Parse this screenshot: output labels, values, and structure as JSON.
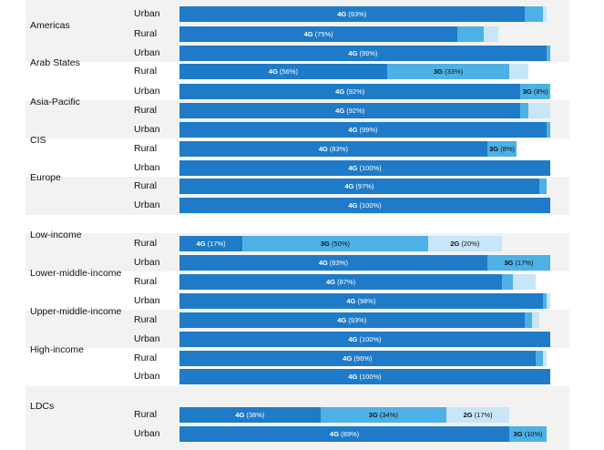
{
  "chart_data": {
    "type": "bar",
    "stacked": true,
    "orientation": "horizontal",
    "xlim": [
      0,
      100
    ],
    "series": [
      {
        "name": "4G",
        "color": "#1f7bc8"
      },
      {
        "name": "3G",
        "color": "#4eb1e6"
      },
      {
        "name": "2G",
        "color": "#c7e6f7"
      }
    ],
    "groups": [
      {
        "label": "",
        "rows": [
          {
            "area": "Urban",
            "values": [
              93,
              5,
              1
            ]
          }
        ]
      },
      {
        "label": "Americas",
        "rows": [
          {
            "area": "Rural",
            "values": [
              75,
              7,
              4
            ]
          },
          {
            "area": "Urban",
            "values": [
              99,
              1,
              0
            ]
          }
        ]
      },
      {
        "label": "Arab States",
        "rows": [
          {
            "area": "Rural",
            "values": [
              56,
              33,
              5
            ]
          },
          {
            "area": "Urban",
            "values": [
              92,
              8,
              0
            ]
          }
        ]
      },
      {
        "label": "Asia-Pacific",
        "rows": [
          {
            "area": "Rural",
            "values": [
              92,
              2,
              6
            ]
          },
          {
            "area": "Urban",
            "values": [
              99,
              1,
              0
            ]
          }
        ]
      },
      {
        "label": "CIS",
        "rows": [
          {
            "area": "Rural",
            "values": [
              83,
              8,
              0
            ]
          },
          {
            "area": "Urban",
            "values": [
              100,
              0,
              0
            ]
          }
        ]
      },
      {
        "label": "Europe",
        "rows": [
          {
            "area": "Rural",
            "values": [
              97,
              2,
              0
            ]
          },
          {
            "area": "Urban",
            "values": [
              100,
              0,
              0
            ]
          }
        ]
      },
      {
        "label": "Low-income",
        "rows": [
          {
            "area": "Rural",
            "values": [
              17,
              50,
              20
            ]
          },
          {
            "area": "Urban",
            "values": [
              83,
              17,
              0
            ]
          }
        ]
      },
      {
        "label": "Lower-middle-income",
        "rows": [
          {
            "area": "Rural",
            "values": [
              87,
              3,
              6
            ]
          },
          {
            "area": "Urban",
            "values": [
              98,
              1,
              1
            ]
          }
        ]
      },
      {
        "label": "Upper-middle-income",
        "rows": [
          {
            "area": "Rural",
            "values": [
              93,
              2,
              2
            ]
          },
          {
            "area": "Urban",
            "values": [
              100,
              0,
              0
            ]
          }
        ]
      },
      {
        "label": "High-income",
        "rows": [
          {
            "area": "Rural",
            "values": [
              96,
              2,
              1
            ]
          },
          {
            "area": "Urban",
            "values": [
              100,
              0,
              0
            ]
          }
        ]
      },
      {
        "label": "LDCs",
        "rows": [
          {
            "area": "Rural",
            "values": [
              38,
              34,
              17
            ]
          },
          {
            "area": "Urban",
            "values": [
              89,
              10,
              0
            ]
          }
        ]
      }
    ]
  }
}
